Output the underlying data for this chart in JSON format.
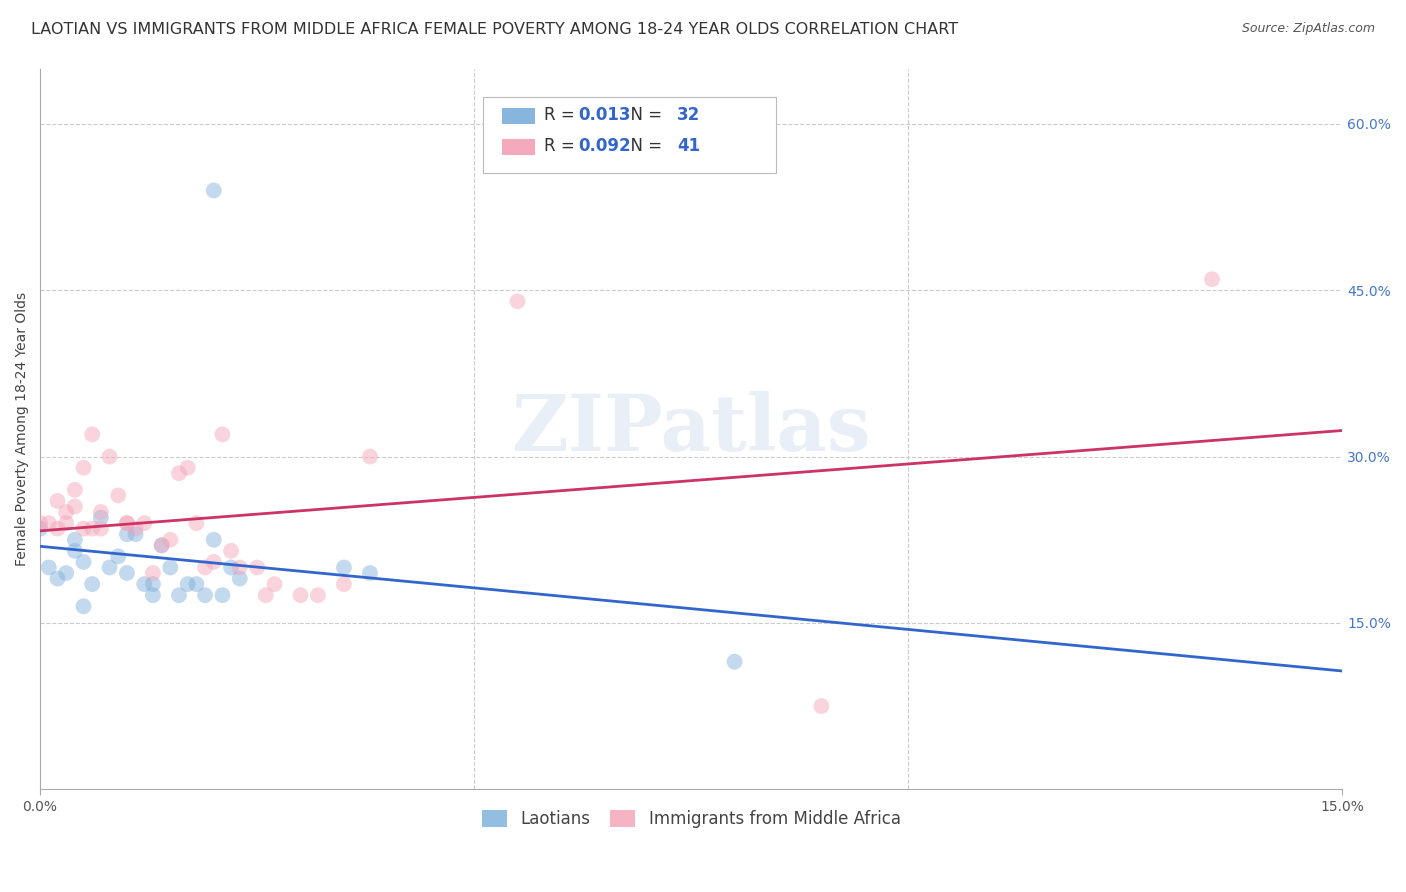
{
  "title": "LAOTIAN VS IMMIGRANTS FROM MIDDLE AFRICA FEMALE POVERTY AMONG 18-24 YEAR OLDS CORRELATION CHART",
  "source": "Source: ZipAtlas.com",
  "ylabel": "Female Poverty Among 18-24 Year Olds",
  "xmin": 0.0,
  "xmax": 0.15,
  "ymin": 0.0,
  "ymax": 0.65,
  "ytick_labels_right": [
    "15.0%",
    "30.0%",
    "45.0%",
    "60.0%"
  ],
  "ytick_vals": [
    0.15,
    0.3,
    0.45,
    0.6
  ],
  "grid_color": "#cccccc",
  "background_color": "#ffffff",
  "laotian_color": "#7aaddb",
  "immigrant_color": "#f4a0b5",
  "laotian_R": "0.013",
  "laotian_N": "32",
  "immigrant_R": "0.092",
  "immigrant_N": "41",
  "legend_label_1": "Laotians",
  "legend_label_2": "Immigrants from Middle Africa",
  "laotian_x": [
    0.0,
    0.001,
    0.002,
    0.003,
    0.004,
    0.004,
    0.005,
    0.005,
    0.006,
    0.007,
    0.008,
    0.009,
    0.01,
    0.01,
    0.011,
    0.012,
    0.013,
    0.013,
    0.014,
    0.015,
    0.016,
    0.017,
    0.018,
    0.019,
    0.02,
    0.021,
    0.022,
    0.023,
    0.035,
    0.038,
    0.08,
    0.02
  ],
  "laotian_y": [
    0.235,
    0.2,
    0.19,
    0.195,
    0.215,
    0.225,
    0.205,
    0.165,
    0.185,
    0.245,
    0.2,
    0.21,
    0.23,
    0.195,
    0.23,
    0.185,
    0.185,
    0.175,
    0.22,
    0.2,
    0.175,
    0.185,
    0.185,
    0.175,
    0.225,
    0.175,
    0.2,
    0.19,
    0.2,
    0.195,
    0.115,
    0.54
  ],
  "immigrant_x": [
    0.0,
    0.001,
    0.002,
    0.002,
    0.003,
    0.003,
    0.004,
    0.004,
    0.005,
    0.005,
    0.006,
    0.006,
    0.007,
    0.007,
    0.008,
    0.009,
    0.01,
    0.01,
    0.011,
    0.012,
    0.013,
    0.014,
    0.015,
    0.016,
    0.017,
    0.018,
    0.019,
    0.02,
    0.021,
    0.022,
    0.023,
    0.025,
    0.026,
    0.027,
    0.03,
    0.032,
    0.035,
    0.038,
    0.055,
    0.09,
    0.135
  ],
  "immigrant_y": [
    0.24,
    0.24,
    0.26,
    0.235,
    0.24,
    0.25,
    0.27,
    0.255,
    0.235,
    0.29,
    0.235,
    0.32,
    0.25,
    0.235,
    0.3,
    0.265,
    0.24,
    0.24,
    0.235,
    0.24,
    0.195,
    0.22,
    0.225,
    0.285,
    0.29,
    0.24,
    0.2,
    0.205,
    0.32,
    0.215,
    0.2,
    0.2,
    0.175,
    0.185,
    0.175,
    0.175,
    0.185,
    0.3,
    0.44,
    0.075,
    0.46
  ],
  "laotian_line_color": "#3366cc",
  "immigrant_line_color": "#cc3366",
  "watermark_text": "ZIPatlas",
  "marker_size": 130,
  "marker_alpha": 0.45,
  "title_fontsize": 11.5,
  "axis_label_fontsize": 10,
  "tick_fontsize": 10,
  "source_fontsize": 9
}
